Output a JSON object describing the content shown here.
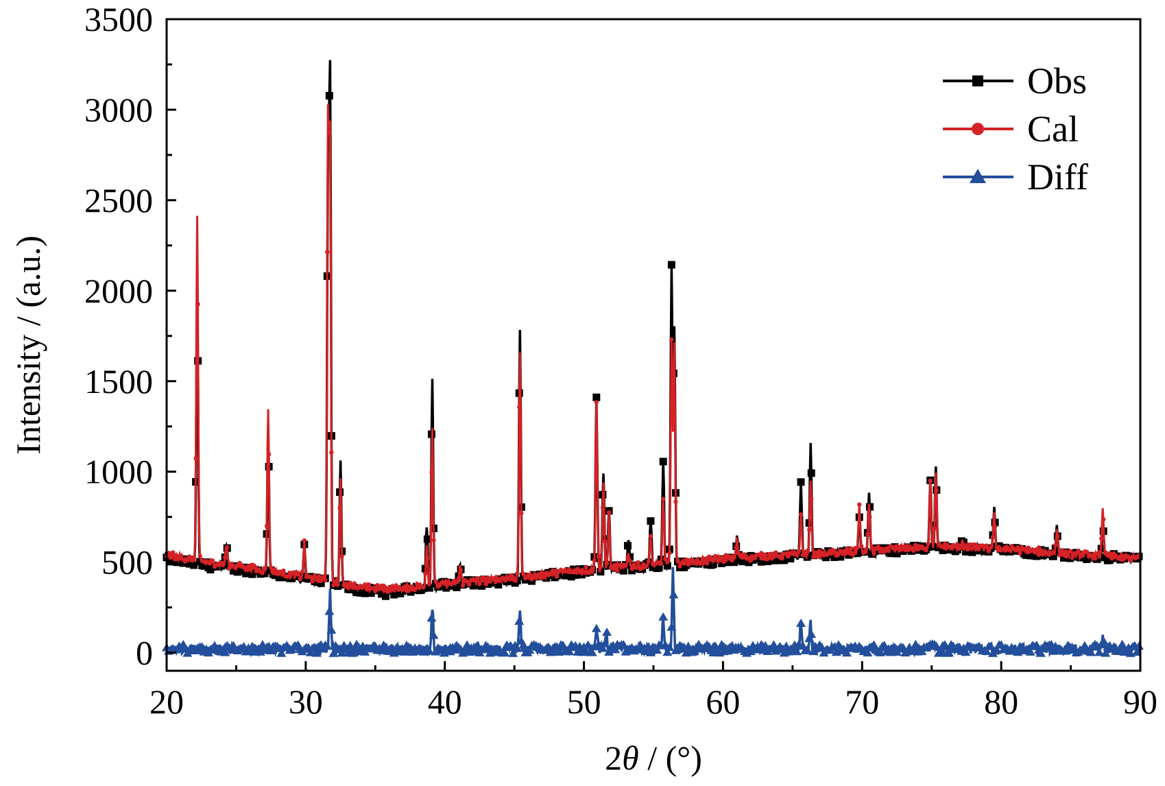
{
  "chart_data": {
    "type": "line",
    "xlabel_prefix": "2",
    "xlabel_symbol": "θ",
    "xlabel_suffix": " / (°)",
    "ylabel": "Intensity / (a.u.)",
    "xlim": [
      20,
      90
    ],
    "ylim": [
      -100,
      3500
    ],
    "x_ticks": [
      "20",
      "30",
      "40",
      "50",
      "60",
      "70",
      "80",
      "90"
    ],
    "y_ticks": [
      "0",
      "500",
      "1000",
      "1500",
      "2000",
      "2500",
      "3000",
      "3500"
    ],
    "x_tick_values": [
      20,
      30,
      40,
      50,
      60,
      70,
      80,
      90
    ],
    "y_tick_values": [
      0,
      500,
      1000,
      1500,
      2000,
      2500,
      3000,
      3500
    ],
    "legend_position": "top-right",
    "grid": false,
    "series": [
      {
        "name": "Obs",
        "color": "#000000",
        "marker": "square",
        "background": [
          [
            20,
            520
          ],
          [
            23,
            480
          ],
          [
            26,
            455
          ],
          [
            29,
            420
          ],
          [
            32,
            380
          ],
          [
            34,
            345
          ],
          [
            36,
            330
          ],
          [
            38,
            360
          ],
          [
            40,
            375
          ],
          [
            44,
            395
          ],
          [
            48,
            430
          ],
          [
            52,
            465
          ],
          [
            56,
            480
          ],
          [
            60,
            510
          ],
          [
            65,
            530
          ],
          [
            70,
            555
          ],
          [
            75,
            580
          ],
          [
            80,
            570
          ],
          [
            85,
            535
          ],
          [
            90,
            520
          ]
        ],
        "peaks": [
          [
            22.2,
            2000
          ],
          [
            27.3,
            1230
          ],
          [
            31.6,
            2650
          ],
          [
            31.75,
            3150
          ],
          [
            32.5,
            1050
          ],
          [
            39.1,
            1500
          ],
          [
            45.4,
            1780
          ],
          [
            50.9,
            1410
          ],
          [
            51.4,
            1000
          ],
          [
            51.8,
            800
          ],
          [
            53.2,
            620
          ],
          [
            54.8,
            720
          ],
          [
            55.7,
            1060
          ],
          [
            56.3,
            2130
          ],
          [
            56.5,
            1800
          ],
          [
            65.6,
            940
          ],
          [
            66.3,
            1140
          ],
          [
            70.5,
            880
          ],
          [
            69.8,
            760
          ],
          [
            74.9,
            940
          ],
          [
            75.3,
            1010
          ],
          [
            79.5,
            800
          ],
          [
            84,
            700
          ],
          [
            87.3,
            740
          ],
          [
            24.3,
            610
          ],
          [
            29.9,
            590
          ],
          [
            38.7,
            710
          ],
          [
            41.1,
            490
          ],
          [
            61,
            640
          ],
          [
            77.2,
            630
          ]
        ]
      },
      {
        "name": "Cal",
        "color": "#d42226",
        "marker": "circle",
        "background": [
          [
            20,
            540
          ],
          [
            23,
            500
          ],
          [
            26,
            470
          ],
          [
            29,
            430
          ],
          [
            32,
            390
          ],
          [
            34,
            360
          ],
          [
            36,
            350
          ],
          [
            38,
            365
          ],
          [
            40,
            380
          ],
          [
            44,
            405
          ],
          [
            48,
            440
          ],
          [
            52,
            470
          ],
          [
            56,
            490
          ],
          [
            60,
            520
          ],
          [
            65,
            540
          ],
          [
            70,
            560
          ],
          [
            75,
            585
          ],
          [
            80,
            575
          ],
          [
            85,
            545
          ],
          [
            90,
            520
          ]
        ],
        "peaks": [
          [
            22.2,
            2420
          ],
          [
            27.3,
            1350
          ],
          [
            31.6,
            2870
          ],
          [
            31.75,
            2800
          ],
          [
            32.5,
            950
          ],
          [
            39.1,
            1250
          ],
          [
            45.4,
            1670
          ],
          [
            50.9,
            1400
          ],
          [
            51.4,
            930
          ],
          [
            51.8,
            760
          ],
          [
            53.2,
            560
          ],
          [
            54.8,
            640
          ],
          [
            55.7,
            860
          ],
          [
            56.3,
            1720
          ],
          [
            56.5,
            1700
          ],
          [
            65.6,
            760
          ],
          [
            66.3,
            970
          ],
          [
            70.5,
            830
          ],
          [
            69.8,
            810
          ],
          [
            74.9,
            960
          ],
          [
            75.3,
            990
          ],
          [
            79.5,
            760
          ],
          [
            84,
            690
          ],
          [
            87.3,
            810
          ],
          [
            24.3,
            600
          ],
          [
            29.9,
            600
          ],
          [
            38.7,
            600
          ],
          [
            41.1,
            480
          ],
          [
            61,
            620
          ],
          [
            77.2,
            620
          ]
        ]
      },
      {
        "name": "Diff",
        "color": "#234e9c",
        "marker": "triangle",
        "background": [
          [
            20,
            20
          ],
          [
            90,
            20
          ]
        ],
        "peaks": [
          [
            31.75,
            330
          ],
          [
            39.1,
            260
          ],
          [
            45.4,
            230
          ],
          [
            50.9,
            150
          ],
          [
            51.6,
            130
          ],
          [
            55.7,
            180
          ],
          [
            56.4,
            450
          ],
          [
            65.6,
            170
          ],
          [
            66.3,
            160
          ],
          [
            87.3,
            90
          ],
          [
            75,
            70
          ]
        ]
      }
    ]
  }
}
